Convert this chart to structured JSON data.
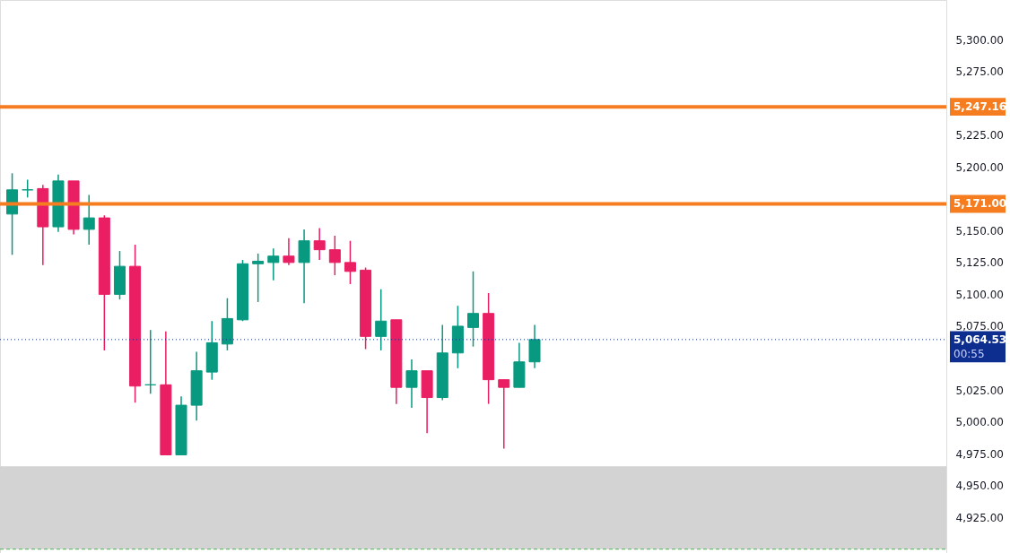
{
  "chart_data": {
    "type": "candlestick",
    "categories": [
      null,
      null,
      null,
      null,
      null,
      null,
      null,
      null,
      null,
      null,
      null,
      null,
      null,
      null,
      null,
      null,
      null,
      null,
      null,
      null,
      null,
      null,
      null,
      null,
      null,
      null,
      null,
      null,
      null,
      null,
      null,
      null,
      null,
      null,
      null,
      null,
      null,
      null,
      null,
      null,
      null,
      null,
      null,
      null,
      null,
      null,
      null,
      null,
      null,
      null,
      null,
      null,
      null,
      null,
      null,
      null,
      null,
      null,
      null,
      null,
      null
    ],
    "ohlc": [
      [
        5163,
        5195,
        5131,
        5182
      ],
      [
        5182,
        5190,
        5176,
        5182
      ],
      [
        5183,
        5186,
        5123,
        5153
      ],
      [
        5153,
        5194,
        5149,
        5189
      ],
      [
        5189,
        5189,
        5147,
        5151
      ],
      [
        5151,
        5178,
        5139,
        5160
      ],
      [
        5160,
        5162,
        5056,
        5100
      ],
      [
        5100,
        5134,
        5096,
        5122
      ],
      [
        5122,
        5139,
        5015,
        5028
      ],
      [
        5029,
        5072,
        5022,
        5029
      ],
      [
        5029,
        5071,
        4974,
        4974
      ],
      [
        4974,
        5020,
        4974,
        5013
      ],
      [
        5013,
        5055,
        5001,
        5040
      ],
      [
        5039,
        5079,
        5033,
        5062
      ],
      [
        5061,
        5097,
        5056,
        5081
      ],
      [
        5080,
        5127,
        5079,
        5124
      ],
      [
        5124,
        5132,
        5094,
        5126
      ],
      [
        5125,
        5136,
        5111,
        5130
      ],
      [
        5130,
        5144,
        5123,
        5125
      ],
      [
        5125,
        5151,
        5093,
        5142
      ],
      [
        5142,
        5152,
        5127,
        5135
      ],
      [
        5135,
        5146,
        5115,
        5125
      ],
      [
        5125,
        5142,
        5108,
        5118
      ],
      [
        5119,
        5121,
        5057,
        5067
      ],
      [
        5067,
        5104,
        5056,
        5079
      ],
      [
        5080,
        5080,
        5014,
        5027
      ],
      [
        5027,
        5049,
        5011,
        5040
      ],
      [
        5040,
        5040,
        4991,
        5019
      ],
      [
        5019,
        5076,
        5017,
        5054
      ],
      [
        5054,
        5091,
        5042,
        5075
      ],
      [
        5074,
        5118,
        5059,
        5085
      ],
      [
        5085,
        5101,
        5014,
        5033
      ],
      [
        5033,
        5033,
        4979,
        5027
      ],
      [
        5027,
        5062,
        5027,
        5047
      ],
      [
        5047,
        5076,
        5042,
        5064.53
      ],
      null,
      null,
      null,
      null,
      null,
      null,
      null,
      null,
      null,
      null,
      null,
      null,
      null,
      null,
      null,
      null,
      null,
      null,
      null,
      null,
      null,
      null,
      null,
      null,
      null,
      null
    ],
    "colors": [
      "#089981",
      "#089981",
      "#e91e63",
      "#089981",
      "#e91e63",
      "#089981",
      "#e91e63",
      "#089981",
      "#e91e63",
      "#089981",
      "#e91e63",
      "#089981",
      "#089981",
      "#089981",
      "#089981",
      "#089981",
      "#089981",
      "#089981",
      "#e91e63",
      "#089981",
      "#e91e63",
      "#e91e63",
      "#e91e63",
      "#e91e63",
      "#089981",
      "#e91e63",
      "#089981",
      "#e91e63",
      "#089981",
      "#089981",
      "#089981",
      "#e91e63",
      "#e91e63",
      "#089981",
      "#089981",
      null,
      null,
      null,
      null,
      null,
      null,
      null,
      null,
      null,
      null,
      null,
      null,
      null,
      null,
      null,
      null,
      null,
      null,
      null,
      null,
      null,
      null,
      null,
      null,
      null,
      null
    ],
    "ylim": [
      4897,
      5331
    ],
    "yticks": [
      {
        "value": 4925,
        "label": "4,925.00"
      },
      {
        "value": 4950,
        "label": "4,950.00"
      },
      {
        "value": 4975,
        "label": "4,975.00"
      },
      {
        "value": 5000,
        "label": "5,000.00"
      },
      {
        "value": 5025,
        "label": "5,025.00"
      },
      {
        "value": 5075,
        "label": "5,075.00"
      },
      {
        "value": 5100,
        "label": "5,100.00"
      },
      {
        "value": 5125,
        "label": "5,125.00"
      },
      {
        "value": 5150,
        "label": "5,150.00"
      },
      {
        "value": 5200,
        "label": "5,200.00"
      },
      {
        "value": 5225,
        "label": "5,225.00"
      },
      {
        "value": 5275,
        "label": "5,275.00"
      },
      {
        "value": 5300,
        "label": "5,300.00"
      }
    ],
    "ref_lines": [
      {
        "axis": "y",
        "value": 5247.16,
        "label": "5,247.16",
        "color": "#f57c1f",
        "line_style": "solid"
      },
      {
        "axis": "y",
        "value": 5171.0,
        "label": "5,171.00",
        "color": "#f57c1f",
        "line_style": "solid"
      },
      {
        "axis": "y",
        "value": 4900,
        "color": "#4caf50",
        "line_style": "dashed"
      },
      {
        "axis": "y",
        "value": 5064.53,
        "label": "5,064.53",
        "color": "#0d2e8f",
        "line_style": "dotted"
      }
    ],
    "bands": [
      {
        "axis": "y",
        "from": 4900,
        "to": 4965,
        "color": "#d3d3d3"
      }
    ],
    "annotations": [
      "00:55"
    ],
    "tick_labels": "y",
    "grid": false
  }
}
